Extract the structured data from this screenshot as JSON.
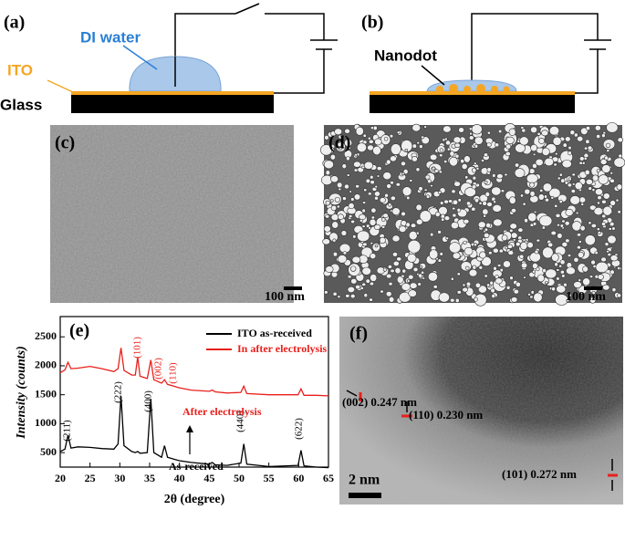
{
  "panels": {
    "a": {
      "label": "(a)",
      "liquid": "DI water",
      "electrode": "ITO",
      "substrate": "Glass"
    },
    "b": {
      "label": "(b)",
      "feature": "Nanodot"
    },
    "c": {
      "label": "(c)",
      "scale": "100 nm"
    },
    "d": {
      "label": "(d)",
      "scale": "100 nm"
    },
    "f": {
      "label": "(f)",
      "fringes": [
        "(002) 0.247 nm",
        "(110) 0.230 nm",
        "(101) 0.272 nm"
      ],
      "scale": "2 nm"
    }
  },
  "chart_data": {
    "type": "line",
    "label": "(e)",
    "x_label": "2θ (degree)",
    "y_label": "Intensity (counts)",
    "x": [
      20,
      20.8,
      21.3,
      21.8,
      23,
      25,
      27,
      29,
      29.7,
      30.2,
      30.7,
      32,
      32.6,
      33,
      33.4,
      34.6,
      35.2,
      35.7,
      37,
      37.5,
      38,
      39.3,
      40,
      42,
      45,
      45.5,
      46,
      48,
      50.3,
      50.8,
      51.3,
      55,
      59.9,
      60.4,
      60.9,
      63,
      65
    ],
    "series": [
      {
        "name": "ITO as-received",
        "color": "#000000",
        "values": [
          520,
          560,
          800,
          580,
          600,
          590,
          570,
          560,
          650,
          1480,
          620,
          520,
          500,
          520,
          490,
          500,
          1430,
          500,
          420,
          620,
          420,
          380,
          360,
          330,
          300,
          330,
          290,
          280,
          320,
          650,
          300,
          260,
          280,
          540,
          270,
          250,
          240
        ]
      },
      {
        "name": "In after electrolysis",
        "color": "#e8201c",
        "values": [
          1880,
          1930,
          2060,
          1950,
          1960,
          1990,
          1950,
          1900,
          1950,
          2310,
          1920,
          1840,
          1840,
          2150,
          1820,
          1780,
          2100,
          1760,
          1700,
          1760,
          1680,
          1640,
          1620,
          1580,
          1560,
          1580,
          1550,
          1530,
          1540,
          1650,
          1520,
          1500,
          1500,
          1600,
          1490,
          1490,
          1480
        ]
      }
    ],
    "annotations": [
      "(211)",
      "(222)",
      "(400)",
      "(440)",
      "(622)",
      "(101)",
      "(002)",
      "(110)",
      "After electrolysis",
      "As-received"
    ],
    "xlim": [
      20,
      65
    ],
    "xticks": [
      20,
      25,
      30,
      35,
      40,
      45,
      50,
      55,
      60,
      65
    ],
    "ylim": [
      250,
      2850
    ],
    "yticks": [
      500,
      1000,
      1500,
      2000,
      2500
    ]
  }
}
